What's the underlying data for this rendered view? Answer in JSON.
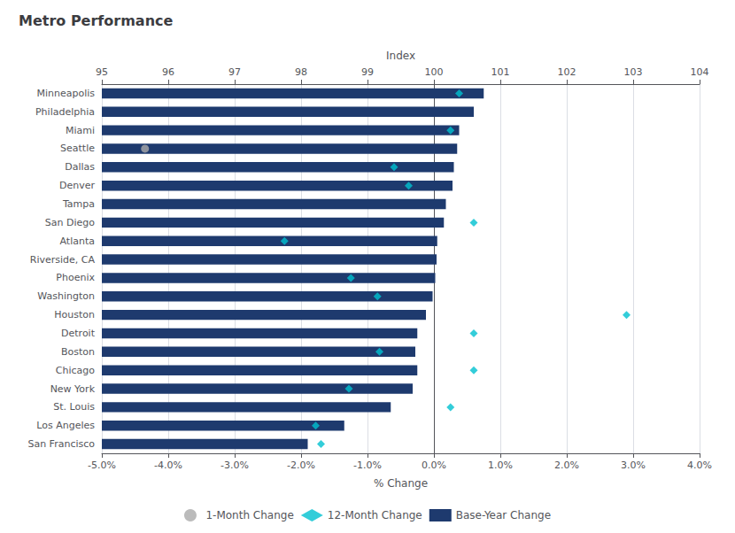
{
  "chart_data": {
    "type": "bar",
    "orientation": "horizontal",
    "title": "Metro Performance",
    "categories": [
      "Minneapolis",
      "Philadelphia",
      "Miami",
      "Seattle",
      "Dallas",
      "Denver",
      "Tampa",
      "San Diego",
      "Atlanta",
      "Riverside, CA",
      "Phoenix",
      "Washington",
      "Houston",
      "Detroit",
      "Boston",
      "Chicago",
      "New York",
      "St. Louis",
      "Los Angeles",
      "San Francisco"
    ],
    "series": [
      {
        "name": "1-Month Change",
        "type": "scatter",
        "marker": "circle",
        "color": "#aaaaaa",
        "values": [
          null,
          null,
          null,
          -4.35,
          null,
          null,
          null,
          null,
          null,
          null,
          null,
          null,
          null,
          null,
          null,
          null,
          null,
          null,
          null,
          null
        ]
      },
      {
        "name": "12-Month Change",
        "type": "scatter",
        "marker": "diamond",
        "color": "#00c0d0",
        "values": [
          0.38,
          null,
          0.25,
          null,
          -0.6,
          -0.38,
          null,
          0.6,
          -2.25,
          null,
          -1.25,
          -0.85,
          2.9,
          0.6,
          -0.82,
          0.6,
          -1.28,
          0.25,
          -1.78,
          -1.7
        ]
      },
      {
        "name": "Base-Year Change",
        "type": "bar",
        "color": "#1e3a6e",
        "values": [
          0.75,
          0.6,
          0.38,
          0.35,
          0.3,
          0.28,
          0.18,
          0.15,
          0.05,
          0.04,
          0.02,
          -0.02,
          -0.12,
          -0.25,
          -0.28,
          -0.25,
          -0.32,
          -0.65,
          -1.35,
          -1.9
        ]
      }
    ],
    "xlabel": "% Change",
    "xlim": [
      -5.0,
      4.0
    ],
    "xticks": [
      {
        "value": -5.0,
        "label": "-5.0%"
      },
      {
        "value": -4.0,
        "label": "-4.0%"
      },
      {
        "value": -3.0,
        "label": "-3.0%"
      },
      {
        "value": -2.0,
        "label": "-2.0%"
      },
      {
        "value": -1.0,
        "label": "-1.0%"
      },
      {
        "value": 0.0,
        "label": "0.0%"
      },
      {
        "value": 1.0,
        "label": "1.0%"
      },
      {
        "value": 2.0,
        "label": "2.0%"
      },
      {
        "value": 3.0,
        "label": "3.0%"
      },
      {
        "value": 4.0,
        "label": "4.0%"
      }
    ],
    "x2label": "Index",
    "x2lim": [
      95,
      104
    ],
    "x2ticks": [
      95,
      96,
      97,
      98,
      99,
      100,
      101,
      102,
      103,
      104
    ],
    "grid": true,
    "legend": "bottom"
  }
}
